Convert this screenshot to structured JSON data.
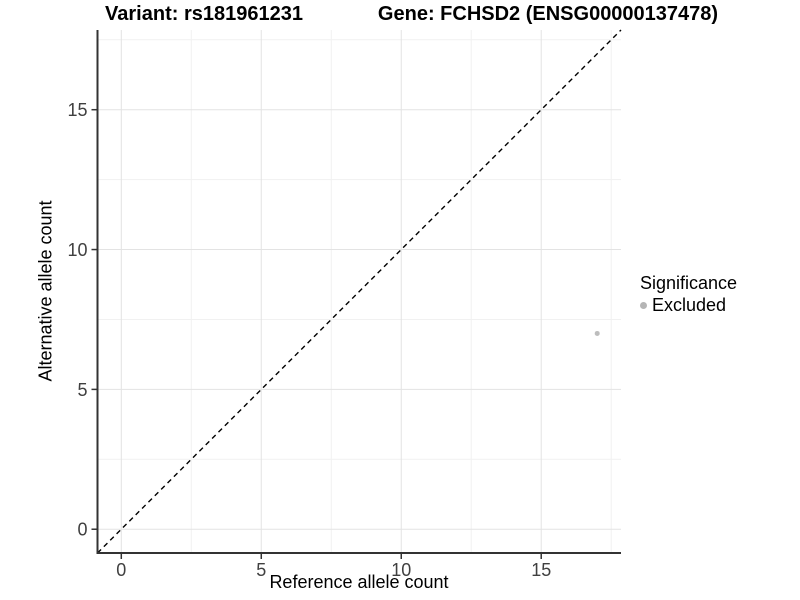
{
  "chart_data": {
    "type": "scatter",
    "title_left": "Variant: rs181961231",
    "title_right": "Gene: FCHSD2 (ENSG00000137478)",
    "xlabel": "Reference allele count",
    "ylabel": "Alternative allele count",
    "xlim": [
      -0.85,
      17.85
    ],
    "ylim": [
      -0.85,
      17.85
    ],
    "xticks": [
      0,
      5,
      10,
      15
    ],
    "yticks": [
      0,
      5,
      10,
      15
    ],
    "x_minor_gridlines": [
      2.5,
      7.5,
      12.5,
      17.5
    ],
    "y_minor_gridlines": [
      2.5,
      7.5,
      12.5,
      17.5
    ],
    "grid": true,
    "identity_line": {
      "style": "dashed",
      "color": "#000000",
      "from": [
        -0.85,
        -0.85
      ],
      "to": [
        17.85,
        17.85
      ]
    },
    "series": [
      {
        "name": "Excluded",
        "color": "#bdbdbd",
        "points": [
          {
            "x": 17,
            "y": 7
          }
        ]
      }
    ],
    "legend": {
      "title": "Significance",
      "position": "right",
      "entries": [
        {
          "label": "Excluded",
          "color": "#b5b5b5"
        }
      ]
    },
    "style_colors": {
      "axis_line": "#333333",
      "tick_label": "#404040",
      "major_grid": "#e3e3e3",
      "minor_grid": "#f1f1f1"
    }
  }
}
